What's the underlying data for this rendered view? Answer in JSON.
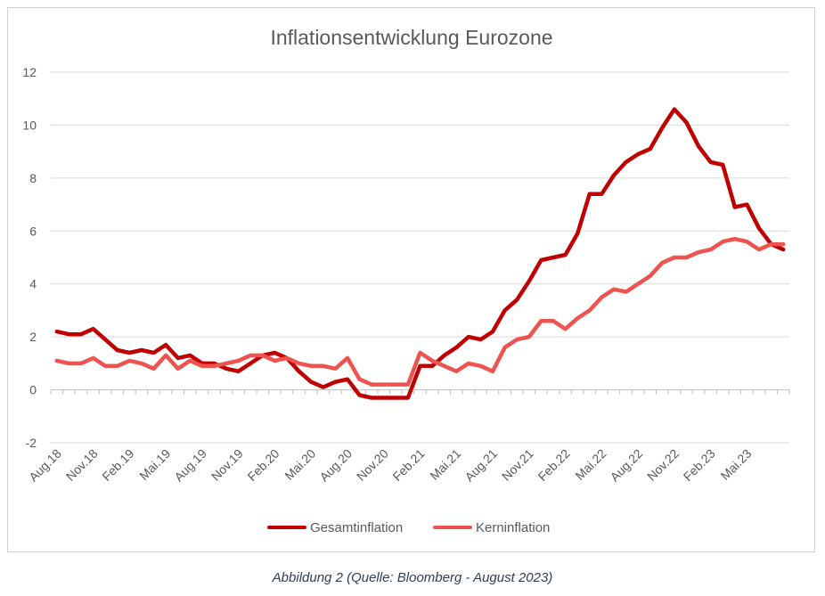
{
  "caption": "Abbildung 2 (Quelle: Bloomberg - August 2023)",
  "colors": {
    "gesamt": "#c00000",
    "kern": "#ef5350",
    "grid": "#d9d9d9",
    "axis": "#bfbfbf",
    "text": "#595959"
  },
  "chart_data": {
    "type": "line",
    "title": "Inflationsentwicklung Eurozone",
    "xlabel": "",
    "ylabel": "",
    "ylim": [
      -2,
      12
    ],
    "yticks": [
      -2,
      0,
      2,
      4,
      6,
      8,
      10,
      12
    ],
    "grid": true,
    "legend_position": "bottom",
    "x": [
      "Aug.18",
      "Sep.18",
      "Okt.18",
      "Nov.18",
      "Dez.18",
      "Jan.19",
      "Feb.19",
      "Mär.19",
      "Apr.19",
      "Mai.19",
      "Jun.19",
      "Jul.19",
      "Aug.19",
      "Sep.19",
      "Okt.19",
      "Nov.19",
      "Dez.19",
      "Jan.20",
      "Feb.20",
      "Mär.20",
      "Apr.20",
      "Mai.20",
      "Jun.20",
      "Jul.20",
      "Aug.20",
      "Sep.20",
      "Okt.20",
      "Nov.20",
      "Dez.20",
      "Jan.21",
      "Feb.21",
      "Mär.21",
      "Apr.21",
      "Mai.21",
      "Jun.21",
      "Jul.21",
      "Aug.21",
      "Sep.21",
      "Okt.21",
      "Nov.21",
      "Dez.21",
      "Jan.22",
      "Feb.22",
      "Mär.22",
      "Apr.22",
      "Mai.22",
      "Jun.22",
      "Jul.22",
      "Aug.22",
      "Sep.22",
      "Okt.22",
      "Nov.22",
      "Dez.22",
      "Jan.23",
      "Feb.23",
      "Mär.23",
      "Apr.23",
      "Mai.23",
      "Jun.23",
      "Jul.23",
      "Aug.23"
    ],
    "x_tick_labels": [
      "Aug.18",
      "Nov.18",
      "Feb.19",
      "Mai.19",
      "Aug.19",
      "Nov.19",
      "Feb.20",
      "Mai.20",
      "Aug.20",
      "Nov.20",
      "Feb.21",
      "Mai.21",
      "Aug.21",
      "Nov.21",
      "Feb.22",
      "Mai.22",
      "Aug.22",
      "Nov.22",
      "Feb.23",
      "Mai.23"
    ],
    "series": [
      {
        "name": "Gesamtinflation",
        "values": [
          2.2,
          2.1,
          2.1,
          2.3,
          1.9,
          1.5,
          1.4,
          1.5,
          1.4,
          1.7,
          1.2,
          1.3,
          1.0,
          1.0,
          0.8,
          0.7,
          1.0,
          1.3,
          1.4,
          1.2,
          0.7,
          0.3,
          0.1,
          0.3,
          0.4,
          -0.2,
          -0.3,
          -0.3,
          -0.3,
          -0.3,
          0.9,
          0.9,
          1.3,
          1.6,
          2.0,
          1.9,
          2.2,
          3.0,
          3.4,
          4.1,
          4.9,
          5.0,
          5.1,
          5.9,
          7.4,
          7.4,
          8.1,
          8.6,
          8.9,
          9.1,
          9.9,
          10.6,
          10.1,
          9.2,
          8.6,
          8.5,
          6.9,
          7.0,
          6.1,
          5.5,
          5.3
        ]
      },
      {
        "name": "Kerninflation",
        "values": [
          1.1,
          1.0,
          1.0,
          1.2,
          0.9,
          0.9,
          1.1,
          1.0,
          0.8,
          1.3,
          0.8,
          1.1,
          0.9,
          0.9,
          1.0,
          1.1,
          1.3,
          1.3,
          1.1,
          1.2,
          1.0,
          0.9,
          0.9,
          0.8,
          1.2,
          0.4,
          0.2,
          0.2,
          0.2,
          0.2,
          1.4,
          1.1,
          0.9,
          0.7,
          1.0,
          0.9,
          0.7,
          1.6,
          1.9,
          2.0,
          2.6,
          2.6,
          2.3,
          2.7,
          3.0,
          3.5,
          3.8,
          3.7,
          4.0,
          4.3,
          4.8,
          5.0,
          5.0,
          5.2,
          5.3,
          5.6,
          5.7,
          5.6,
          5.3,
          5.5,
          5.5
        ]
      }
    ]
  }
}
